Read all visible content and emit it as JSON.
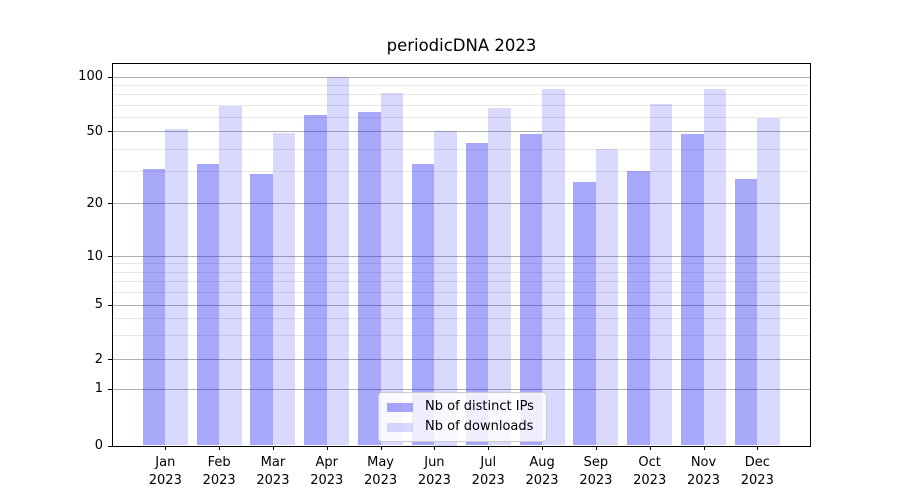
{
  "chart_data": {
    "type": "bar",
    "title": "periodicDNA 2023",
    "categories": [
      "Jan",
      "Feb",
      "Mar",
      "Apr",
      "May",
      "Jun",
      "Jul",
      "Aug",
      "Sep",
      "Oct",
      "Nov",
      "Dec"
    ],
    "category_year": "2023",
    "series": [
      {
        "name": "Nb of distinct IPs",
        "color": "rgba(20,20,245,0.37)",
        "values": [
          31,
          33,
          29,
          61,
          64,
          33,
          43,
          48,
          26,
          30,
          48,
          27
        ]
      },
      {
        "name": "Nb of downloads",
        "color": "rgba(20,20,245,0.16)",
        "values": [
          51,
          69,
          49,
          100,
          81,
          50,
          67,
          85,
          40,
          71,
          85,
          59
        ]
      }
    ],
    "xlabel": "",
    "ylabel": "",
    "yscale": "symlog",
    "ylim": [
      0,
      100
    ],
    "yticks_major": [
      0,
      1,
      2,
      5,
      10,
      20,
      50,
      100
    ],
    "yticks_minor": [
      3,
      4,
      6,
      7,
      8,
      9,
      30,
      40,
      60,
      70,
      80,
      90
    ],
    "grid": true,
    "legend_position": "lower center inside",
    "colors": {
      "grid_major": "#b0b0b0",
      "grid_minor": "#e8e8e8",
      "spine": "#000000",
      "text": "#000000",
      "legend_border": "#cccccc",
      "legend_bg": "rgba(255,255,255,0.8)"
    }
  }
}
